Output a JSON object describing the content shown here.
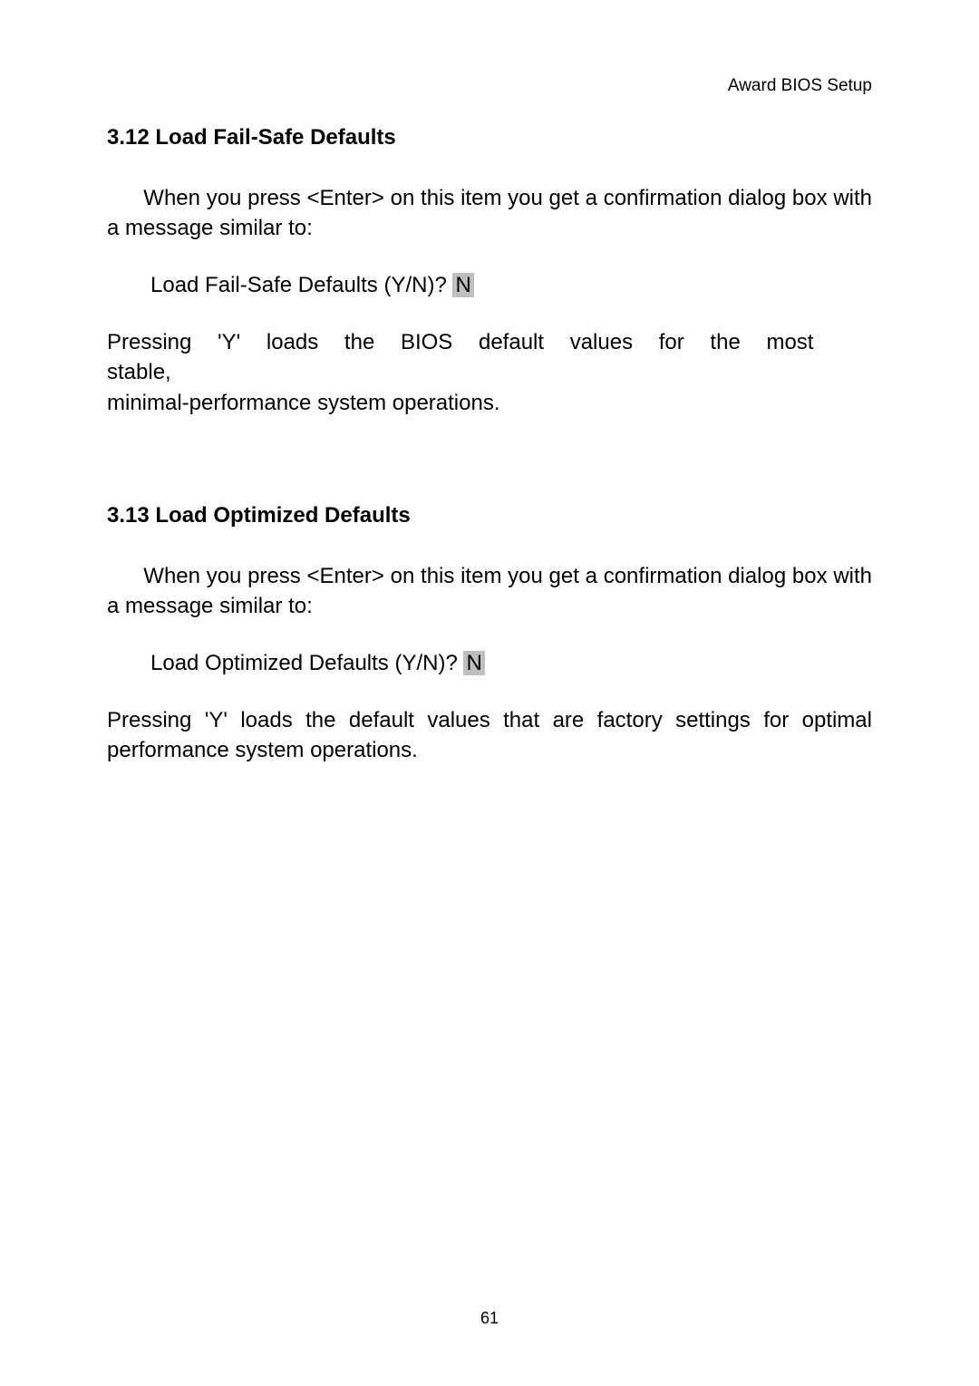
{
  "document": {
    "header_right": "Award BIOS Setup",
    "page_number": "61",
    "text_color": "#000000",
    "background_color": "#ffffff",
    "highlight_bg": "#bfbfbf",
    "body_fontsize": 24,
    "header_fontsize": 19,
    "title_fontsize": 24
  },
  "section1": {
    "title": "3.12 Load Fail-Safe Defaults",
    "para1_prefix": "      When you press <Enter> on this item you get a confirmation dialog box with a message similar to:",
    "prompt_label": "Load Fail-Safe Defaults (Y/N)?  ",
    "prompt_value": "N",
    "para2_a": "Pressing 'Y' loads the BIOS default values for the most stable,",
    "para2_b": "minimal-performance system operations."
  },
  "section2": {
    "title": "3.13 Load Optimized Defaults",
    "para1_prefix": "      When you press <Enter> on this item you get a confirmation dialog box with a message similar to:",
    "prompt_label": "Load Optimized Defaults (Y/N)?  ",
    "prompt_value": "N",
    "para2": "Pressing 'Y' loads the default values that are factory settings for optimal performance system operations."
  }
}
